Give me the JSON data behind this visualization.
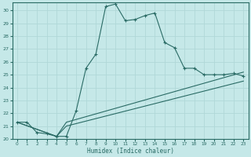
{
  "xlabel": "Humidex (Indice chaleur)",
  "ylabel": "",
  "xlim": [
    -0.5,
    23.5
  ],
  "ylim": [
    20,
    30.6
  ],
  "xticks": [
    0,
    1,
    2,
    3,
    4,
    5,
    6,
    7,
    8,
    9,
    10,
    11,
    12,
    13,
    14,
    15,
    16,
    17,
    18,
    19,
    20,
    21,
    22,
    23
  ],
  "yticks": [
    20,
    21,
    22,
    23,
    24,
    25,
    26,
    27,
    28,
    29,
    30
  ],
  "bg_color": "#c5e8e8",
  "line_color": "#2a6b65",
  "grid_color": "#b0d8d8",
  "line1_x": [
    0,
    1,
    2,
    3,
    4,
    5,
    6,
    7,
    8,
    9,
    10,
    11,
    12,
    13,
    14,
    15,
    16,
    17,
    18,
    19,
    20,
    21,
    22,
    23
  ],
  "line1_y": [
    21.3,
    21.3,
    20.5,
    20.4,
    20.2,
    20.2,
    22.2,
    25.5,
    26.6,
    30.3,
    30.5,
    29.2,
    29.3,
    29.6,
    29.8,
    27.5,
    27.1,
    25.5,
    25.5,
    25.0,
    25.0,
    25.0,
    25.1,
    24.9
  ],
  "line2_x": [
    0,
    4,
    5,
    23
  ],
  "line2_y": [
    21.3,
    20.2,
    21.3,
    25.2
  ],
  "line3_x": [
    0,
    4,
    5,
    23
  ],
  "line3_y": [
    21.3,
    20.2,
    21.0,
    24.5
  ]
}
